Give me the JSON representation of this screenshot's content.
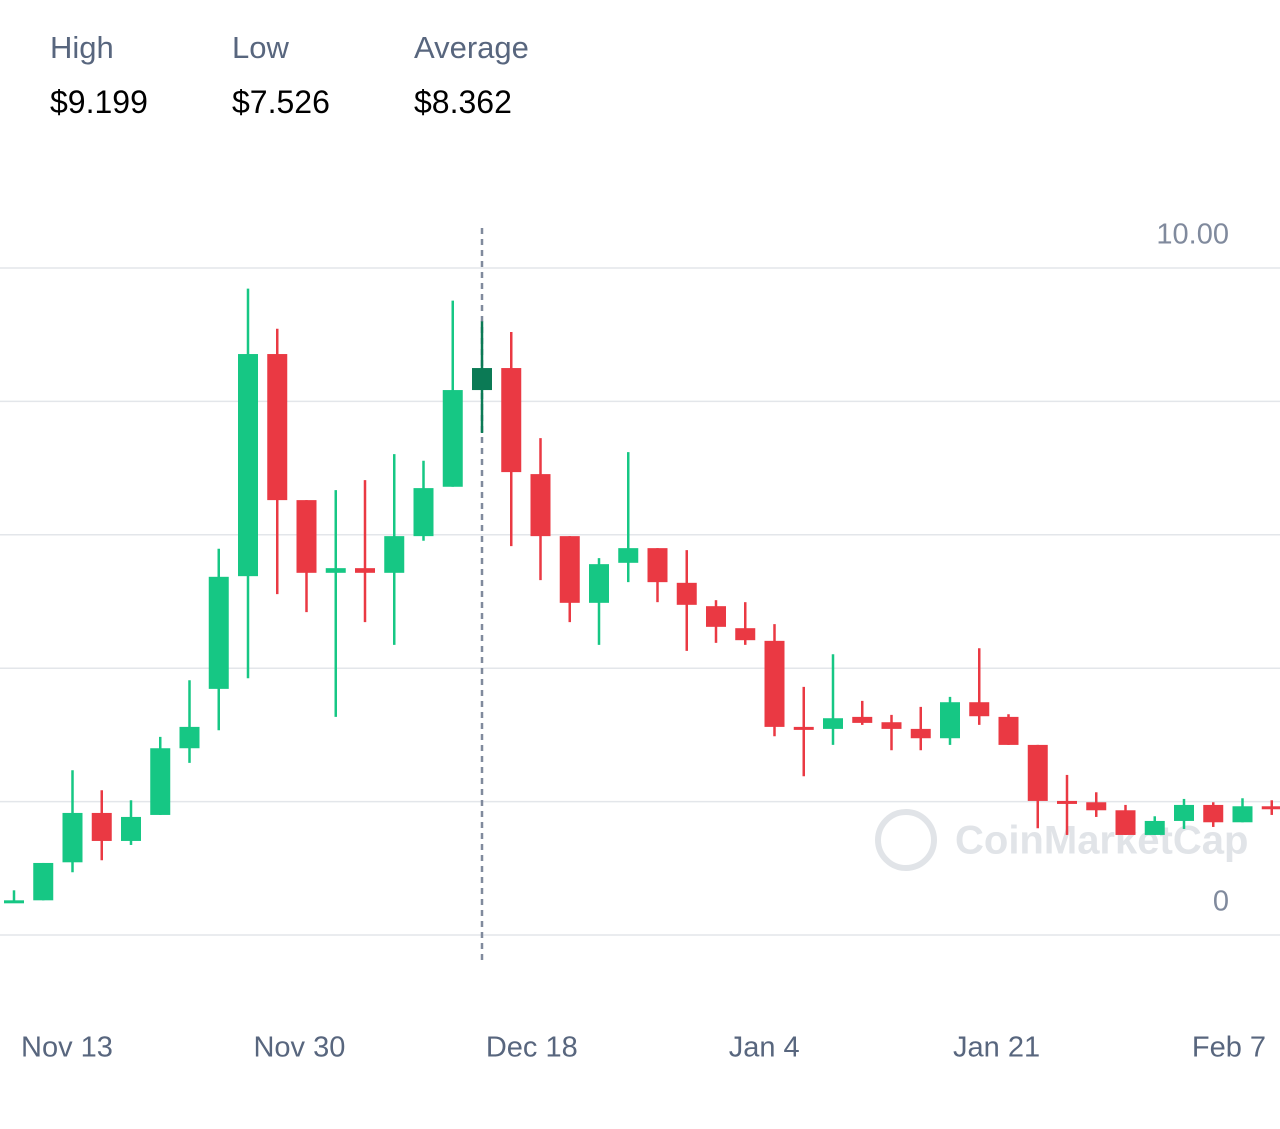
{
  "stats": [
    {
      "label": "High",
      "value": "$9.199"
    },
    {
      "label": "Low",
      "value": "$7.526"
    },
    {
      "label": "Average",
      "value": "$8.362"
    }
  ],
  "chart_data": {
    "type": "candlestick",
    "watermark": "CoinMarketCap",
    "x_axis_labels": [
      "Nov 13",
      "Nov 30",
      "Dec 18",
      "Jan 4",
      "Jan 21",
      "Feb 7"
    ],
    "ylim": [
      0,
      10
    ],
    "yticks": [
      0,
      {
        "value": 10,
        "label": "10.00"
      }
    ],
    "grid_lines": [
      0,
      2,
      4,
      6,
      8,
      10
    ],
    "up_color": "#16c784",
    "down_color": "#ea3943",
    "highlight_index": 16,
    "highlight_color": "#0b7a55",
    "open": [
      0.49,
      0.52,
      1.09,
      1.83,
      1.41,
      1.8,
      2.8,
      3.69,
      5.38,
      8.71,
      6.52,
      5.43,
      5.5,
      5.43,
      5.98,
      6.72,
      8.17,
      8.5,
      6.91,
      5.98,
      4.98,
      5.58,
      5.8,
      5.28,
      4.93,
      4.6,
      4.41,
      3.12,
      3.09,
      3.27,
      3.19,
      3.09,
      2.95,
      3.49,
      3.27,
      2.85,
      2.01,
      1.99,
      1.87,
      1.5,
      1.71,
      1.95,
      1.69,
      1.93
    ],
    "high": [
      0.67,
      1.08,
      2.47,
      2.17,
      2.02,
      2.97,
      3.82,
      5.79,
      9.69,
      9.09,
      6.52,
      6.67,
      6.82,
      7.21,
      7.11,
      9.51,
      9.199,
      9.04,
      7.45,
      5.98,
      5.65,
      7.24,
      5.8,
      5.77,
      5.02,
      4.99,
      4.66,
      3.72,
      4.21,
      3.51,
      3.3,
      3.42,
      3.57,
      4.3,
      3.31,
      2.85,
      2.4,
      2.14,
      1.95,
      1.78,
      2.04,
      1.99,
      2.05,
      2.02
    ],
    "low": [
      0.49,
      0.52,
      0.94,
      1.12,
      1.35,
      1.8,
      2.58,
      3.07,
      3.85,
      5.11,
      4.84,
      3.27,
      4.69,
      4.35,
      5.91,
      6.72,
      7.526,
      5.83,
      5.32,
      4.69,
      4.35,
      5.29,
      4.99,
      4.26,
      4.38,
      4.35,
      2.98,
      2.38,
      2.85,
      3.15,
      2.77,
      2.77,
      2.85,
      3.15,
      2.85,
      1.6,
      1.5,
      1.77,
      1.5,
      1.5,
      1.59,
      1.62,
      1.69,
      1.8
    ],
    "close": [
      0.52,
      1.08,
      1.83,
      1.41,
      1.77,
      2.8,
      3.12,
      5.37,
      8.71,
      6.52,
      5.43,
      5.5,
      5.43,
      5.98,
      6.7,
      8.17,
      8.5,
      6.94,
      5.98,
      4.98,
      5.56,
      5.8,
      5.29,
      4.95,
      4.62,
      4.42,
      3.12,
      3.09,
      3.25,
      3.18,
      3.09,
      2.95,
      3.49,
      3.28,
      2.85,
      2.01,
      1.98,
      1.87,
      1.5,
      1.71,
      1.95,
      1.69,
      1.93,
      1.9
    ]
  }
}
